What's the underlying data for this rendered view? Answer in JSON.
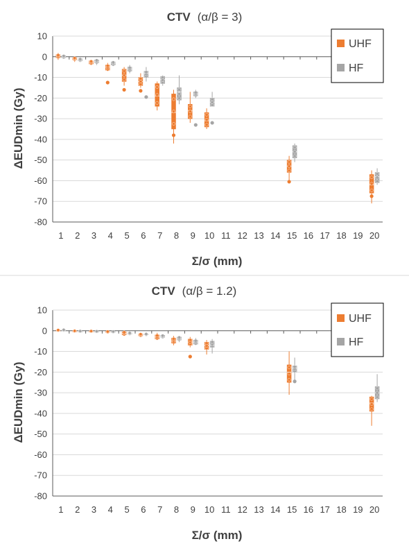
{
  "colors": {
    "UHF": "#ED7D31",
    "HF": "#A5A5A5",
    "grid": "#D9D9D9",
    "axis": "#595959",
    "text": "#404040"
  },
  "chart_data": [
    {
      "type": "box",
      "title_main": "CTV",
      "title_param": "(α/β = 3)",
      "xlabel": "Σ/σ (mm)",
      "ylabel": "ΔEUDmin (Gy)",
      "ylim": [
        -80,
        10
      ],
      "yticks": [
        10,
        0,
        -10,
        -20,
        -30,
        -40,
        -50,
        -60,
        -70,
        -80
      ],
      "categories": [
        "1",
        "2",
        "3",
        "4",
        "5",
        "6",
        "7",
        "8",
        "9",
        "10",
        "11",
        "12",
        "13",
        "14",
        "15",
        "16",
        "17",
        "18",
        "19",
        "20"
      ],
      "legend": {
        "position": "top-right",
        "entries": [
          "UHF",
          "HF"
        ]
      },
      "series": [
        {
          "name": "UHF",
          "boxes": [
            {
              "x": "1",
              "min": -1.5,
              "q1": -0.5,
              "median": 0.3,
              "q3": 1.0,
              "max": 1.8,
              "outliers": []
            },
            {
              "x": "2",
              "min": -2.5,
              "q1": -1.5,
              "median": -1.0,
              "q3": -0.5,
              "max": 0.0,
              "outliers": []
            },
            {
              "x": "3",
              "min": -4.0,
              "q1": -3.5,
              "median": -2.5,
              "q3": -2.0,
              "max": -1.5,
              "outliers": []
            },
            {
              "x": "4",
              "min": -7.0,
              "q1": -6.5,
              "median": -5.0,
              "q3": -4.0,
              "max": -3.0,
              "outliers": [
                -12.5
              ]
            },
            {
              "x": "5",
              "min": -14.0,
              "q1": -12.0,
              "median": -9.0,
              "q3": -6.0,
              "max": -5.0,
              "outliers": [
                -16.0
              ]
            },
            {
              "x": "6",
              "min": -15.0,
              "q1": -14.0,
              "median": -12.0,
              "q3": -10.0,
              "max": -8.0,
              "outliers": [
                -16.5
              ]
            },
            {
              "x": "7",
              "min": -26.0,
              "q1": -24.0,
              "median": -19.0,
              "q3": -13.0,
              "max": -12.0,
              "outliers": []
            },
            {
              "x": "8",
              "min": -42.0,
              "q1": -35.0,
              "median": -27.0,
              "q3": -18.0,
              "max": -16.0,
              "outliers": [
                -38.0
              ]
            },
            {
              "x": "9",
              "min": -32.0,
              "q1": -30.0,
              "median": -26.0,
              "q3": -23.0,
              "max": -17.0,
              "outliers": []
            },
            {
              "x": "10",
              "min": -35.0,
              "q1": -34.0,
              "median": -31.0,
              "q3": -27.0,
              "max": -25.0,
              "outliers": []
            },
            {
              "x": "15",
              "min": -60.0,
              "q1": -56.0,
              "median": -53.0,
              "q3": -50.0,
              "max": -48.0,
              "outliers": [
                -60.5
              ]
            },
            {
              "x": "20",
              "min": -71.0,
              "q1": -66.0,
              "median": -62.0,
              "q3": -57.0,
              "max": -55.0,
              "outliers": [
                -67.5
              ]
            }
          ]
        },
        {
          "name": "HF",
          "boxes": [
            {
              "x": "1",
              "min": -1.0,
              "q1": -0.5,
              "median": 0.0,
              "q3": 0.5,
              "max": 1.0,
              "outliers": []
            },
            {
              "x": "2",
              "min": -2.5,
              "q1": -2.0,
              "median": -1.5,
              "q3": -1.0,
              "max": -0.5,
              "outliers": []
            },
            {
              "x": "3",
              "min": -4.0,
              "q1": -3.0,
              "median": -2.5,
              "q3": -1.5,
              "max": -1.0,
              "outliers": []
            },
            {
              "x": "4",
              "min": -4.5,
              "q1": -4.0,
              "median": -3.0,
              "q3": -2.5,
              "max": -2.0,
              "outliers": []
            },
            {
              "x": "5",
              "min": -8.0,
              "q1": -7.0,
              "median": -6.0,
              "q3": -5.0,
              "max": -4.0,
              "outliers": []
            },
            {
              "x": "6",
              "min": -12.0,
              "q1": -10.0,
              "median": -8.0,
              "q3": -7.0,
              "max": -5.0,
              "outliers": [
                -19.5
              ]
            },
            {
              "x": "7",
              "min": -14.0,
              "q1": -13.0,
              "median": -11.0,
              "q3": -9.5,
              "max": -9.0,
              "outliers": []
            },
            {
              "x": "8",
              "min": -23.0,
              "q1": -21.0,
              "median": -17.0,
              "q3": -15.0,
              "max": -9.0,
              "outliers": []
            },
            {
              "x": "9",
              "min": -20.0,
              "q1": -19.0,
              "median": -18.0,
              "q3": -17.0,
              "max": -16.0,
              "outliers": [
                -33.0
              ]
            },
            {
              "x": "10",
              "min": -24.0,
              "q1": -24.0,
              "median": -22.0,
              "q3": -20.0,
              "max": -17.0,
              "outliers": [
                -32.0
              ]
            },
            {
              "x": "15",
              "min": -51.0,
              "q1": -49.0,
              "median": -46.0,
              "q3": -43.0,
              "max": -42.0,
              "outliers": []
            },
            {
              "x": "20",
              "min": -62.0,
              "q1": -61.0,
              "median": -58.0,
              "q3": -56.0,
              "max": -54.0,
              "outliers": []
            }
          ]
        }
      ]
    },
    {
      "type": "box",
      "title_main": "CTV",
      "title_param": "(α/β = 1.2)",
      "xlabel": "Σ/σ (mm)",
      "ylabel": "ΔEUDmin (Gy)",
      "ylim": [
        -80,
        10
      ],
      "yticks": [
        10,
        0,
        -10,
        -20,
        -30,
        -40,
        -50,
        -60,
        -70,
        -80
      ],
      "categories": [
        "1",
        "2",
        "3",
        "4",
        "5",
        "6",
        "7",
        "8",
        "9",
        "10",
        "11",
        "12",
        "13",
        "14",
        "15",
        "16",
        "17",
        "18",
        "19",
        "20"
      ],
      "legend": {
        "position": "top-right",
        "entries": [
          "UHF",
          "HF"
        ]
      },
      "series": [
        {
          "name": "UHF",
          "boxes": [
            {
              "x": "1",
              "min": 0.0,
              "q1": 0.0,
              "median": 0.2,
              "q3": 0.4,
              "max": 0.6,
              "outliers": []
            },
            {
              "x": "2",
              "min": -0.5,
              "q1": -0.3,
              "median": -0.2,
              "q3": 0.0,
              "max": 0.2,
              "outliers": []
            },
            {
              "x": "3",
              "min": -0.6,
              "q1": -0.4,
              "median": -0.3,
              "q3": -0.1,
              "max": 0.0,
              "outliers": []
            },
            {
              "x": "4",
              "min": -1.0,
              "q1": -0.8,
              "median": -0.5,
              "q3": -0.3,
              "max": -0.1,
              "outliers": []
            },
            {
              "x": "5",
              "min": -2.5,
              "q1": -2.0,
              "median": -1.2,
              "q3": -0.5,
              "max": 0.2,
              "outliers": []
            },
            {
              "x": "6",
              "min": -3.0,
              "q1": -2.5,
              "median": -2.0,
              "q3": -1.5,
              "max": -1.0,
              "outliers": []
            },
            {
              "x": "7",
              "min": -4.5,
              "q1": -4.0,
              "median": -3.0,
              "q3": -2.0,
              "max": -1.0,
              "outliers": []
            },
            {
              "x": "8",
              "min": -7.0,
              "q1": -6.0,
              "median": -5.0,
              "q3": -3.5,
              "max": -2.5,
              "outliers": []
            },
            {
              "x": "9",
              "min": -8.0,
              "q1": -7.0,
              "median": -5.5,
              "q3": -4.0,
              "max": -3.0,
              "outliers": [
                -12.5
              ]
            },
            {
              "x": "10",
              "min": -11.5,
              "q1": -9.0,
              "median": -7.0,
              "q3": -5.5,
              "max": -4.5,
              "outliers": []
            },
            {
              "x": "15",
              "min": -31.0,
              "q1": -25.0,
              "median": -20.0,
              "q3": -16.5,
              "max": -10.0,
              "outliers": []
            },
            {
              "x": "20",
              "min": -46.0,
              "q1": -39.0,
              "median": -35.0,
              "q3": -32.0,
              "max": -31.5,
              "outliers": []
            }
          ]
        },
        {
          "name": "HF",
          "boxes": [
            {
              "x": "1",
              "min": 0.0,
              "q1": 0.1,
              "median": 0.3,
              "q3": 0.5,
              "max": 0.8,
              "outliers": []
            },
            {
              "x": "2",
              "min": -0.6,
              "q1": -0.4,
              "median": -0.3,
              "q3": -0.1,
              "max": 0.0,
              "outliers": []
            },
            {
              "x": "3",
              "min": -0.7,
              "q1": -0.5,
              "median": -0.4,
              "q3": -0.2,
              "max": -0.1,
              "outliers": []
            },
            {
              "x": "4",
              "min": -0.9,
              "q1": -0.7,
              "median": -0.5,
              "q3": -0.3,
              "max": -0.2,
              "outliers": []
            },
            {
              "x": "5",
              "min": -1.8,
              "q1": -1.6,
              "median": -1.3,
              "q3": -1.0,
              "max": -0.8,
              "outliers": []
            },
            {
              "x": "6",
              "min": -2.2,
              "q1": -2.0,
              "median": -1.8,
              "q3": -1.5,
              "max": -1.2,
              "outliers": []
            },
            {
              "x": "7",
              "min": -3.5,
              "q1": -3.2,
              "median": -2.8,
              "q3": -2.2,
              "max": -1.8,
              "outliers": []
            },
            {
              "x": "8",
              "min": -5.5,
              "q1": -4.5,
              "median": -4.0,
              "q3": -3.0,
              "max": -2.5,
              "outliers": []
            },
            {
              "x": "9",
              "min": -7.0,
              "q1": -6.5,
              "median": -5.5,
              "q3": -4.5,
              "max": -3.5,
              "outliers": []
            },
            {
              "x": "10",
              "min": -11.0,
              "q1": -8.0,
              "median": -7.0,
              "q3": -5.0,
              "max": -4.0,
              "outliers": []
            },
            {
              "x": "15",
              "min": -24.0,
              "q1": -20.0,
              "median": -18.0,
              "q3": -17.0,
              "max": -13.0,
              "outliers": [
                -24.5
              ]
            },
            {
              "x": "20",
              "min": -34.5,
              "q1": -33.0,
              "median": -30.0,
              "q3": -27.0,
              "max": -21.0,
              "outliers": []
            }
          ]
        }
      ]
    }
  ]
}
